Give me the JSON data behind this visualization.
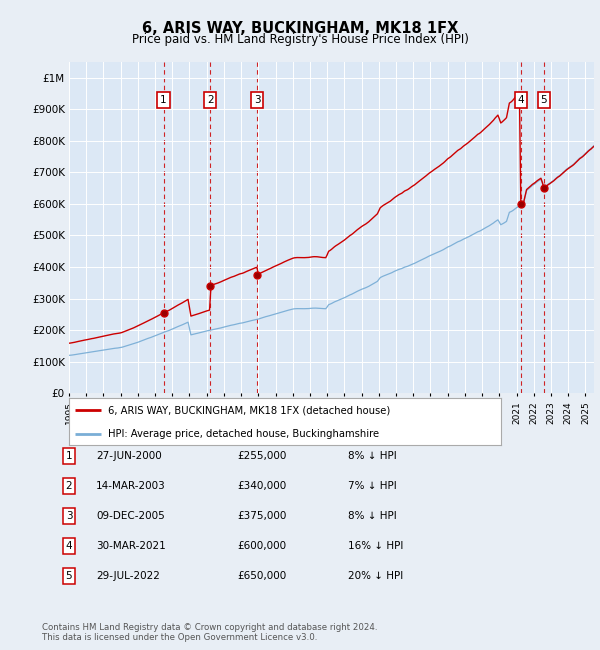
{
  "title": "6, ARIS WAY, BUCKINGHAM, MK18 1FX",
  "subtitle": "Price paid vs. HM Land Registry's House Price Index (HPI)",
  "background_color": "#e8eef5",
  "plot_bg_color": "#dce8f5",
  "ylim": [
    0,
    1050000
  ],
  "yticks": [
    0,
    100000,
    200000,
    300000,
    400000,
    500000,
    600000,
    700000,
    800000,
    900000,
    1000000
  ],
  "ytick_labels": [
    "£0",
    "£100K",
    "£200K",
    "£300K",
    "£400K",
    "£500K",
    "£600K",
    "£700K",
    "£800K",
    "£900K",
    "£1M"
  ],
  "hpi_color": "#7aaed6",
  "price_color": "#cc0000",
  "vline_color": "#cc0000",
  "purchases": [
    {
      "date": 2000.49,
      "price": 255000,
      "label": "1"
    },
    {
      "date": 2003.2,
      "price": 340000,
      "label": "2"
    },
    {
      "date": 2005.93,
      "price": 375000,
      "label": "3"
    },
    {
      "date": 2021.25,
      "price": 600000,
      "label": "4"
    },
    {
      "date": 2022.58,
      "price": 650000,
      "label": "5"
    }
  ],
  "legend_entries": [
    {
      "label": "6, ARIS WAY, BUCKINGHAM, MK18 1FX (detached house)",
      "color": "#cc0000"
    },
    {
      "label": "HPI: Average price, detached house, Buckinghamshire",
      "color": "#7aaed6"
    }
  ],
  "table_rows": [
    {
      "num": "1",
      "date": "27-JUN-2000",
      "price": "£255,000",
      "pct": "8% ↓ HPI"
    },
    {
      "num": "2",
      "date": "14-MAR-2003",
      "price": "£340,000",
      "pct": "7% ↓ HPI"
    },
    {
      "num": "3",
      "date": "09-DEC-2005",
      "price": "£375,000",
      "pct": "8% ↓ HPI"
    },
    {
      "num": "4",
      "date": "30-MAR-2021",
      "price": "£600,000",
      "pct": "16% ↓ HPI"
    },
    {
      "num": "5",
      "date": "29-JUL-2022",
      "price": "£650,000",
      "pct": "20% ↓ HPI"
    }
  ],
  "footer": "Contains HM Land Registry data © Crown copyright and database right 2024.\nThis data is licensed under the Open Government Licence v3.0.",
  "xmin": 1995.0,
  "xmax": 2025.5
}
